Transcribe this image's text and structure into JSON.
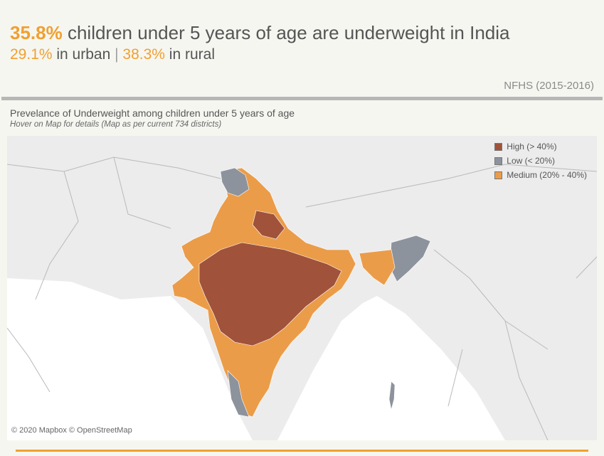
{
  "header": {
    "headline_value": "35.8%",
    "headline_text": " children under 5 years of age are underweight in India",
    "urban_value": "29.1%",
    "urban_text": " in urban ",
    "separator": "|",
    "rural_value": "38.3%",
    "rural_text": " in rural",
    "source": "NFHS (2015-2016)"
  },
  "map": {
    "title": "Prevelance of Underweight among children under 5 years of age",
    "subtitle": "Hover on Map for details (Map as per current 734 districts)",
    "attribution": "© 2020 Mapbox © OpenStreetMap",
    "legend": [
      {
        "label": "High (> 40%)",
        "color": "#a0533a"
      },
      {
        "label": "Low (< 20%)",
        "color": "#8d939c"
      },
      {
        "label": "Medium (20% - 40%)",
        "color": "#eb9c49"
      }
    ]
  },
  "colors": {
    "accent": "#f0a030",
    "high": "#a0533a",
    "medium": "#eb9c49",
    "low": "#8d939c",
    "land": "#e9e9e9",
    "sea": "#ffffff"
  }
}
